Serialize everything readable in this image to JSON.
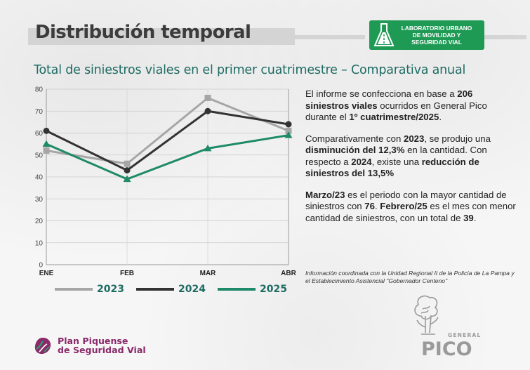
{
  "header": {
    "title": "Distribución temporal",
    "lab_logo_lines": [
      "LABORATORIO URBANO",
      "DE MOVILIDAD Y",
      "SEGURIDAD VIAL"
    ]
  },
  "subtitle": "Total de siniestros viales en el primer cuatrimestre – Comparativa anual",
  "chart_data": {
    "type": "line",
    "categories": [
      "ENE",
      "FEB",
      "MAR",
      "ABR"
    ],
    "series": [
      {
        "name": "2023",
        "color": "#a6a6a6",
        "marker": "square",
        "values": [
          52,
          46,
          76,
          61
        ]
      },
      {
        "name": "2024",
        "color": "#333333",
        "marker": "circle",
        "values": [
          61,
          43,
          70,
          64
        ]
      },
      {
        "name": "2025",
        "color": "#1e8a68",
        "marker": "triangle",
        "values": [
          55,
          39,
          53,
          59
        ]
      }
    ],
    "ylim": [
      0,
      80
    ],
    "yticks": [
      "0",
      "10",
      "20",
      "30",
      "40",
      "50",
      "60",
      "70",
      "80"
    ],
    "grid": "horizontal",
    "legend": "bottom"
  },
  "info": {
    "p1": [
      {
        "t": "El informe se confecciona en base a ",
        "b": false
      },
      {
        "t": "206 siniestros viales",
        "b": true
      },
      {
        "t": " ocurridos en General Pico durante el ",
        "b": false
      },
      {
        "t": "1º cuatrimestre/2025",
        "b": true
      },
      {
        "t": ".",
        "b": false
      }
    ],
    "p2": [
      {
        "t": "Comparativamente con ",
        "b": false
      },
      {
        "t": "2023",
        "b": true
      },
      {
        "t": ", se produjo una ",
        "b": false
      },
      {
        "t": "disminución del 12,3%",
        "b": true
      },
      {
        "t": " en la cantidad. Con respecto a ",
        "b": false
      },
      {
        "t": "2024",
        "b": true
      },
      {
        "t": ", existe una ",
        "b": false
      },
      {
        "t": "reducción de siniestros del 13,5%",
        "b": true
      }
    ],
    "p3": [
      {
        "t": "Marzo/23",
        "b": true
      },
      {
        "t": " es el periodo con la mayor cantidad de siniestros con ",
        "b": false
      },
      {
        "t": "76",
        "b": true
      },
      {
        "t": ". ",
        "b": false
      },
      {
        "t": "Febrero/25",
        "b": true
      },
      {
        "t": " es el mes con menor cantidad de siniestros, con un total de ",
        "b": false
      },
      {
        "t": "39",
        "b": true
      },
      {
        "t": ".",
        "b": false
      }
    ]
  },
  "note": "Información coordinada con la Unidad Regional II de la Policía de La Pampa y el Establecimiento Asistencial \"Gobernador Centeno\"",
  "footer": {
    "plan_logo_lines": [
      "Plan Piquense",
      "de Seguridad Vial"
    ],
    "pico_logo_small": "GENERAL",
    "pico_logo_big": "PICO",
    "colors": {
      "brand_green": "#1f9a55",
      "accent_teal": "#1e6b63",
      "plan_purple": "#8a2a6a"
    }
  }
}
